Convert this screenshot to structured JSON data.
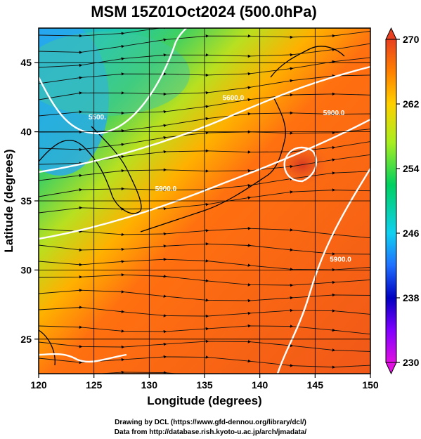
{
  "title": "MSM 15Z01Oct2024 (500.0hPa)",
  "xaxis": {
    "label": "Longitude (degrees)",
    "min": 120,
    "max": 150,
    "ticks": [
      "120",
      "125",
      "130",
      "135",
      "140",
      "145",
      "150"
    ]
  },
  "yaxis": {
    "label": "Latitude  (degrees)",
    "min": 22.5,
    "max": 47.5,
    "ticks": [
      "25",
      "30",
      "35",
      "40",
      "45"
    ]
  },
  "colorbar": {
    "min": 230,
    "max": 270,
    "ticks": [
      "230",
      "238",
      "246",
      "254",
      "262",
      "270"
    ]
  },
  "contours": [
    {
      "label": "5500.",
      "lon": 125.3,
      "lat": 40.9
    },
    {
      "label": "5900.0",
      "lon": 131.5,
      "lat": 35.7
    },
    {
      "label": "5900.0",
      "lon": 147.3,
      "lat": 30.6
    },
    {
      "label": "5900.0",
      "lon": 146.7,
      "lat": 41.2
    },
    {
      "label": "5600.0",
      "lon": 137.6,
      "lat": 42.3
    }
  ],
  "credits": [
    "Drawing by DCL (https://www.gfd-dennou.org/library/dcl/)",
    "Data from http://database.rish.kyoto-u.ac.jp/arch/jmadata/"
  ]
}
